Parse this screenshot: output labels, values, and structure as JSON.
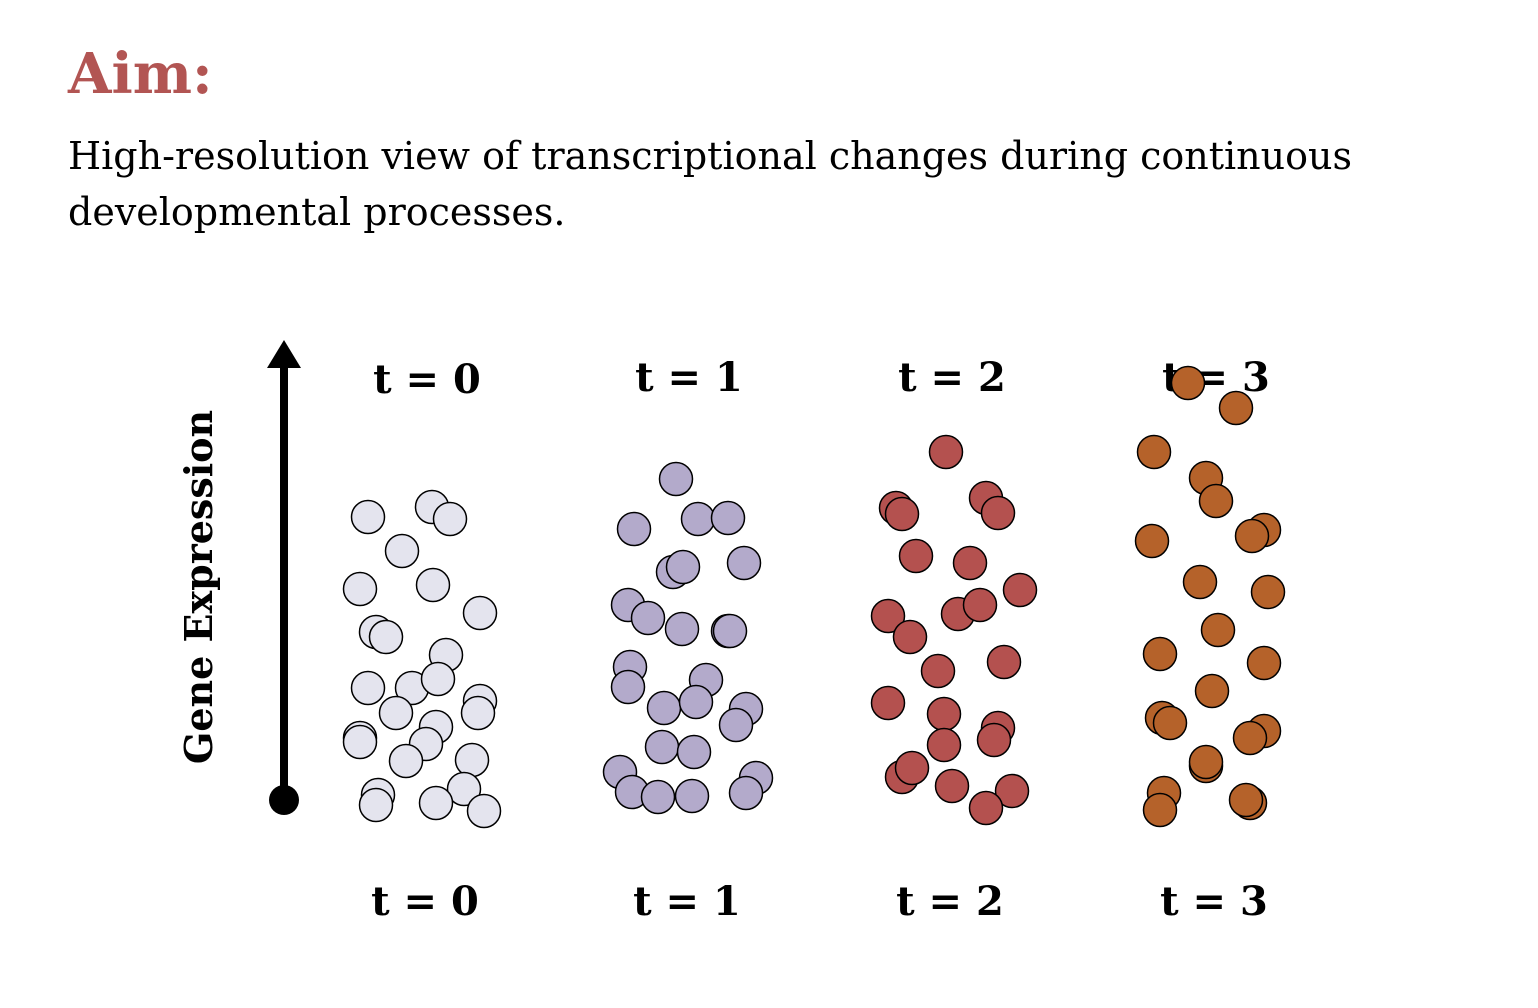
{
  "header": {
    "title": "Aim:",
    "description": "High-resolution view of transcriptional changes during continuous developmental processes."
  },
  "diagram": {
    "axis_label": "Gene Expression",
    "columns": [
      {
        "top_label": "t = 0",
        "bottom_label": "t = 0",
        "color": "#e4e4ee"
      },
      {
        "top_label": "t = 1",
        "bottom_label": "t = 1",
        "color": "#b3aacb"
      },
      {
        "top_label": "t = 2",
        "bottom_label": "t = 2",
        "color": "#b4514f"
      },
      {
        "top_label": "t = 3",
        "bottom_label": "t = 3",
        "color": "#b5622a"
      }
    ]
  },
  "colors": {
    "title": "#b25553",
    "text": "#000000",
    "arrow": "#000000"
  }
}
